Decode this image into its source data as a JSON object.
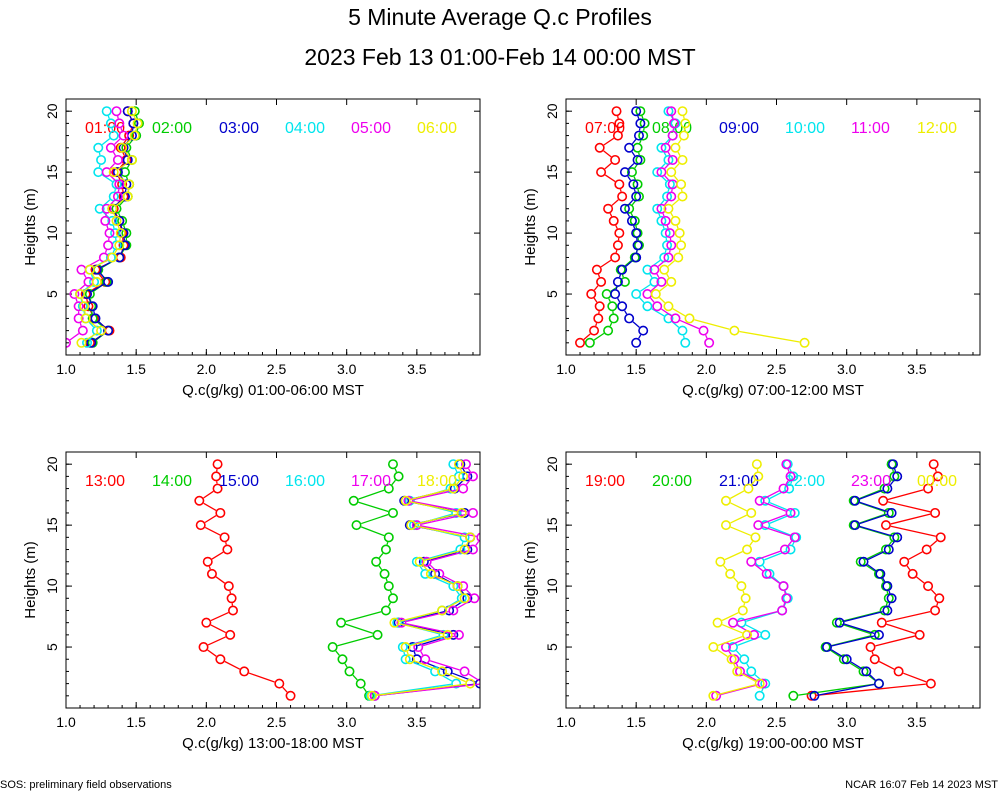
{
  "title": "5 Minute Average Q.c Profiles",
  "subtitle": "2023 Feb 13 01:00-Feb 14 00:00 MST",
  "footer": {
    "left": "SOS: preliminary field observations",
    "right": "NCAR 16:07 Feb 14 2023 MST"
  },
  "colors": {
    "red": "#ff0000",
    "green": "#00cc00",
    "blue": "#0000cc",
    "cyan": "#00e5ee",
    "magenta": "#ee00ee",
    "yellow": "#eeee00"
  },
  "chart_data": [
    {
      "type": "line",
      "xlabel": "Q.c(g/kg) 01:00-06:00 MST",
      "ylabel": "Heights (m)",
      "xlim": [
        1.0,
        3.95
      ],
      "ylim": [
        0,
        21
      ],
      "xticks": [
        "1.0",
        "1.5",
        "2.0",
        "2.5",
        "3.0",
        "3.5"
      ],
      "yticks": [
        "5",
        "10",
        "15",
        "20"
      ],
      "heights": [
        1,
        2,
        3,
        4,
        5,
        6,
        7,
        8,
        9,
        10,
        11,
        12,
        13,
        14,
        15,
        16,
        17,
        18,
        19,
        20
      ],
      "series": [
        {
          "name": "01:00",
          "color": "red",
          "values": [
            1.17,
            1.31,
            1.2,
            1.16,
            1.14,
            1.28,
            1.21,
            1.39,
            1.41,
            1.4,
            1.38,
            1.34,
            1.41,
            1.4,
            1.36,
            1.43,
            1.39,
            1.45,
            1.48,
            1.44
          ]
        },
        {
          "name": "02:00",
          "color": "green",
          "values": [
            1.19,
            1.3,
            1.19,
            1.18,
            1.17,
            1.29,
            1.23,
            1.38,
            1.43,
            1.43,
            1.4,
            1.36,
            1.44,
            1.45,
            1.42,
            1.47,
            1.43,
            1.5,
            1.52,
            1.49
          ]
        },
        {
          "name": "03:00",
          "color": "blue",
          "values": [
            1.18,
            1.3,
            1.21,
            1.19,
            1.15,
            1.3,
            1.22,
            1.38,
            1.42,
            1.41,
            1.38,
            1.33,
            1.42,
            1.43,
            1.37,
            1.44,
            1.41,
            1.47,
            1.48,
            1.44
          ]
        },
        {
          "name": "04:00",
          "color": "cyan",
          "values": [
            1.15,
            1.22,
            1.14,
            1.12,
            1.1,
            1.2,
            1.17,
            1.32,
            1.36,
            1.35,
            1.33,
            1.24,
            1.34,
            1.36,
            1.23,
            1.25,
            1.23,
            1.34,
            1.32,
            1.29
          ]
        },
        {
          "name": "05:00",
          "color": "magenta",
          "values": [
            1.0,
            1.12,
            1.09,
            1.09,
            1.06,
            1.16,
            1.11,
            1.27,
            1.3,
            1.31,
            1.28,
            1.29,
            1.37,
            1.38,
            1.29,
            1.37,
            1.32,
            1.41,
            1.38,
            1.36
          ]
        },
        {
          "name": "06:00",
          "color": "yellow",
          "values": [
            1.11,
            1.25,
            1.14,
            1.13,
            1.1,
            1.22,
            1.17,
            1.33,
            1.38,
            1.39,
            1.36,
            1.33,
            1.44,
            1.45,
            1.34,
            1.47,
            1.4,
            1.49,
            1.51,
            1.47
          ]
        }
      ]
    },
    {
      "type": "line",
      "xlabel": "Q.c(g/kg) 07:00-12:00 MST",
      "ylabel": "Heights (m)",
      "xlim": [
        1.0,
        3.95
      ],
      "ylim": [
        0,
        21
      ],
      "xticks": [
        "1.0",
        "1.5",
        "2.0",
        "2.5",
        "3.0",
        "3.5"
      ],
      "yticks": [
        "5",
        "10",
        "15",
        "20"
      ],
      "heights": [
        1,
        2,
        3,
        4,
        5,
        6,
        7,
        8,
        9,
        10,
        11,
        12,
        13,
        14,
        15,
        16,
        17,
        18,
        19,
        20
      ],
      "series": [
        {
          "name": "07:00",
          "color": "red",
          "values": [
            1.1,
            1.2,
            1.23,
            1.24,
            1.18,
            1.25,
            1.22,
            1.35,
            1.37,
            1.38,
            1.34,
            1.3,
            1.4,
            1.38,
            1.25,
            1.35,
            1.24,
            1.37,
            1.38,
            1.36
          ]
        },
        {
          "name": "08:00",
          "color": "green",
          "values": [
            1.17,
            1.3,
            1.34,
            1.33,
            1.29,
            1.42,
            1.39,
            1.49,
            1.52,
            1.51,
            1.49,
            1.45,
            1.52,
            1.51,
            1.47,
            1.53,
            1.51,
            1.55,
            1.56,
            1.53
          ]
        },
        {
          "name": "09:00",
          "color": "blue",
          "values": [
            1.5,
            1.55,
            1.45,
            1.4,
            1.35,
            1.37,
            1.4,
            1.5,
            1.51,
            1.5,
            1.47,
            1.42,
            1.5,
            1.48,
            1.42,
            1.51,
            1.45,
            1.52,
            1.53,
            1.5
          ]
        },
        {
          "name": "10:00",
          "color": "cyan",
          "values": [
            1.85,
            1.83,
            1.73,
            1.58,
            1.5,
            1.63,
            1.58,
            1.7,
            1.72,
            1.71,
            1.68,
            1.65,
            1.72,
            1.74,
            1.65,
            1.73,
            1.68,
            1.76,
            1.78,
            1.73
          ]
        },
        {
          "name": "11:00",
          "color": "magenta",
          "values": [
            2.02,
            1.98,
            1.78,
            1.65,
            1.58,
            1.68,
            1.63,
            1.73,
            1.75,
            1.74,
            1.71,
            1.68,
            1.75,
            1.76,
            1.68,
            1.76,
            1.71,
            1.76,
            1.77,
            1.75
          ]
        },
        {
          "name": "12:00",
          "color": "yellow",
          "values": [
            2.7,
            2.2,
            1.88,
            1.73,
            1.64,
            1.75,
            1.7,
            1.8,
            1.82,
            1.81,
            1.78,
            1.73,
            1.83,
            1.82,
            1.75,
            1.83,
            1.78,
            1.84,
            1.85,
            1.83
          ]
        }
      ]
    },
    {
      "type": "line",
      "xlabel": "Q.c(g/kg) 13:00-18:00 MST",
      "ylabel": "Heights (m)",
      "xlim": [
        1.0,
        3.95
      ],
      "ylim": [
        0,
        21
      ],
      "xticks": [
        "1.0",
        "1.5",
        "2.0",
        "2.5",
        "3.0",
        "3.5"
      ],
      "yticks": [
        "5",
        "10",
        "15",
        "20"
      ],
      "heights": [
        1,
        2,
        3,
        4,
        5,
        6,
        7,
        8,
        9,
        10,
        11,
        12,
        13,
        14,
        15,
        16,
        17,
        18,
        19,
        20
      ],
      "series": [
        {
          "name": "13:00",
          "color": "red",
          "values": [
            2.6,
            2.52,
            2.27,
            2.1,
            1.98,
            2.17,
            2.0,
            2.19,
            2.18,
            2.16,
            2.04,
            2.01,
            2.15,
            2.13,
            1.96,
            2.1,
            1.95,
            2.08,
            2.07,
            2.08
          ]
        },
        {
          "name": "14:00",
          "color": "green",
          "values": [
            3.16,
            3.1,
            3.02,
            2.97,
            2.9,
            3.22,
            2.96,
            3.28,
            3.33,
            3.3,
            3.27,
            3.21,
            3.28,
            3.3,
            3.07,
            3.33,
            3.05,
            3.3,
            3.37,
            3.33
          ]
        },
        {
          "name": "15:00",
          "color": "blue",
          "values": [
            3.2,
            3.95,
            3.72,
            3.5,
            3.47,
            3.76,
            3.37,
            3.73,
            3.86,
            3.79,
            3.63,
            3.55,
            3.86,
            3.88,
            3.45,
            3.84,
            3.41,
            3.77,
            3.86,
            3.81
          ]
        },
        {
          "name": "16:00",
          "color": "cyan",
          "values": [
            3.17,
            3.78,
            3.63,
            3.42,
            3.4,
            3.69,
            3.36,
            3.68,
            3.82,
            3.76,
            3.56,
            3.5,
            3.81,
            3.84,
            3.48,
            3.78,
            3.45,
            3.74,
            3.8,
            3.76
          ]
        },
        {
          "name": "17:00",
          "color": "magenta",
          "values": [
            3.2,
            3.98,
            3.84,
            3.56,
            3.51,
            3.8,
            3.39,
            3.76,
            3.91,
            3.83,
            3.66,
            3.57,
            3.9,
            3.96,
            3.5,
            3.9,
            3.44,
            3.83,
            3.9,
            3.85
          ]
        },
        {
          "name": "18:00",
          "color": "yellow",
          "values": [
            3.18,
            3.88,
            3.68,
            3.45,
            3.42,
            3.72,
            3.34,
            3.68,
            3.84,
            3.79,
            3.6,
            3.52,
            3.84,
            3.88,
            3.46,
            3.82,
            3.42,
            3.76,
            3.83,
            3.8
          ]
        }
      ]
    },
    {
      "type": "line",
      "xlabel": "Q.c(g/kg) 19:00-00:00 MST",
      "ylabel": "Heights (m)",
      "xlim": [
        1.0,
        3.95
      ],
      "ylim": [
        0,
        21
      ],
      "xticks": [
        "1.0",
        "1.5",
        "2.0",
        "2.5",
        "3.0",
        "3.5"
      ],
      "yticks": [
        "5",
        "10",
        "15",
        "20"
      ],
      "heights": [
        1,
        2,
        3,
        4,
        5,
        6,
        7,
        8,
        9,
        10,
        11,
        12,
        13,
        14,
        15,
        16,
        17,
        18,
        19,
        20
      ],
      "series": [
        {
          "name": "19:00",
          "color": "red",
          "values": [
            2.75,
            3.6,
            3.37,
            3.2,
            3.17,
            3.52,
            3.25,
            3.63,
            3.66,
            3.58,
            3.47,
            3.41,
            3.57,
            3.67,
            3.28,
            3.63,
            3.26,
            3.58,
            3.65,
            3.62
          ]
        },
        {
          "name": "20:00",
          "color": "green",
          "values": [
            2.62,
            3.23,
            3.12,
            2.98,
            2.85,
            3.2,
            2.93,
            3.27,
            3.3,
            3.28,
            3.23,
            3.1,
            3.28,
            3.34,
            3.05,
            3.3,
            3.05,
            3.27,
            3.34,
            3.32
          ]
        },
        {
          "name": "21:00",
          "color": "blue",
          "values": [
            2.77,
            3.23,
            3.14,
            3.0,
            2.86,
            3.23,
            2.95,
            3.29,
            3.32,
            3.29,
            3.24,
            3.12,
            3.3,
            3.36,
            3.06,
            3.32,
            3.06,
            3.29,
            3.36,
            3.33
          ]
        },
        {
          "name": "22:00",
          "color": "cyan",
          "values": [
            2.38,
            2.42,
            2.32,
            2.27,
            2.19,
            2.42,
            2.25,
            2.54,
            2.58,
            2.55,
            2.45,
            2.38,
            2.6,
            2.64,
            2.42,
            2.63,
            2.42,
            2.59,
            2.62,
            2.58
          ]
        },
        {
          "name": "23:00",
          "color": "magenta",
          "values": [
            2.07,
            2.4,
            2.24,
            2.2,
            2.14,
            2.34,
            2.19,
            2.54,
            2.57,
            2.55,
            2.43,
            2.32,
            2.56,
            2.63,
            2.37,
            2.6,
            2.38,
            2.55,
            2.6,
            2.57
          ]
        },
        {
          "name": "00:00",
          "color": "yellow",
          "values": [
            2.05,
            2.38,
            2.22,
            2.18,
            2.05,
            2.29,
            2.08,
            2.26,
            2.28,
            2.25,
            2.17,
            2.1,
            2.29,
            2.35,
            2.14,
            2.32,
            2.14,
            2.3,
            2.37,
            2.36
          ]
        }
      ]
    }
  ]
}
